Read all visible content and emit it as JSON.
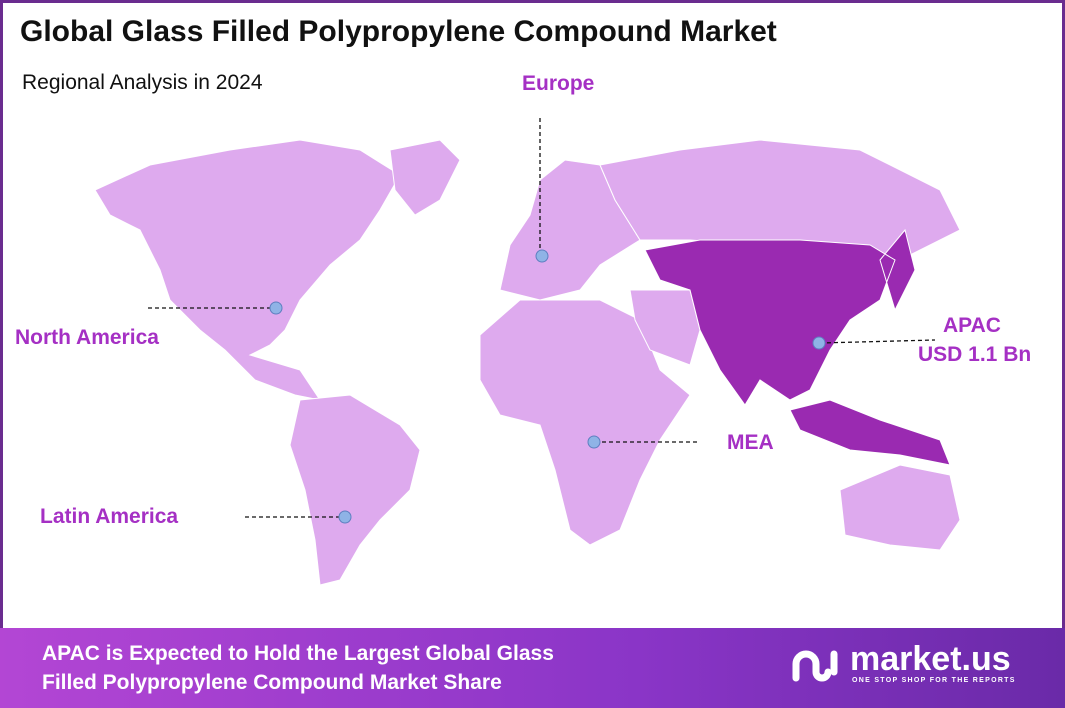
{
  "title": "Global Glass Filled Polypropylene Compound Market",
  "subtitle": "Regional Analysis in 2024",
  "colors": {
    "region": "#deaaee",
    "highlight": "#9a2ab1",
    "label": "#a530c4",
    "banner": "#9a3fd0"
  },
  "regions": {
    "europe": "Europe",
    "north_america": "North America",
    "apac": "APAC",
    "apac_value": "USD 1.1 Bn",
    "mea": "MEA",
    "latin_america": "Latin America"
  },
  "highlighted_region": "APAC",
  "banner": {
    "line1": "APAC is Expected to Hold the Largest Global Glass",
    "line2": "Filled Polypropylene Compound Market Share"
  },
  "logo": {
    "name": "market.us",
    "tagline": "ONE STOP SHOP FOR THE REPORTS"
  }
}
